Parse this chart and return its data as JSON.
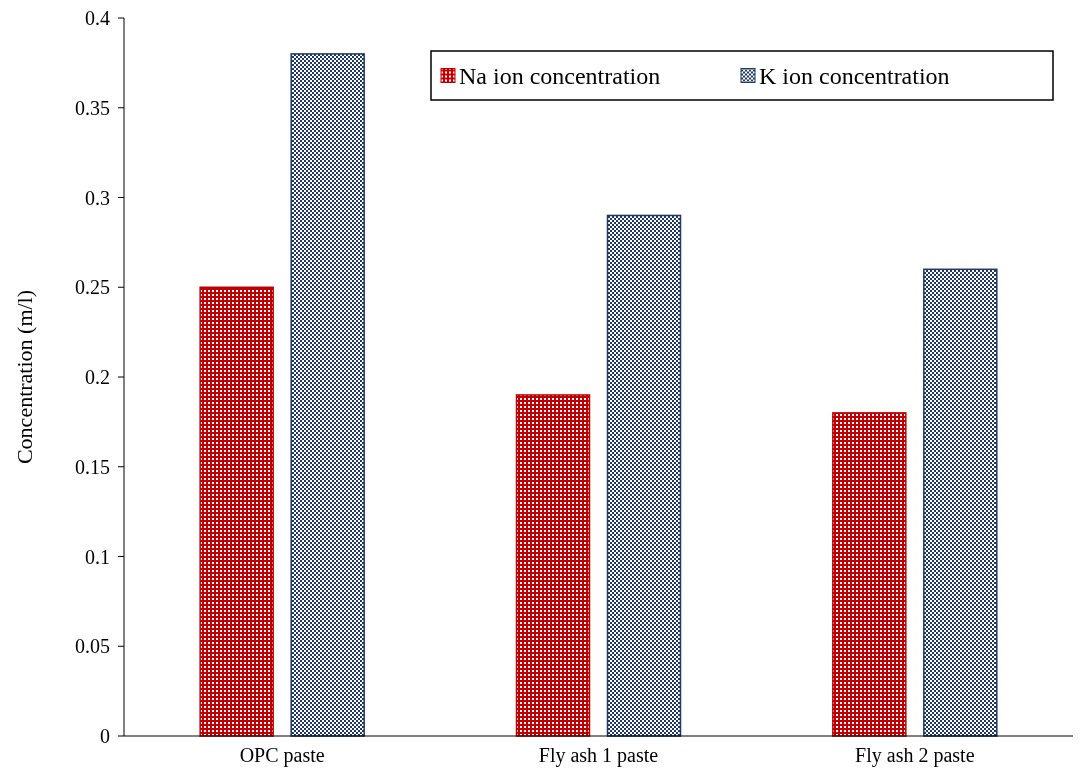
{
  "chart_data": {
    "type": "bar",
    "ylabel": "Concentration (m/l)",
    "categories": [
      "OPC paste",
      "Fly ash 1 paste",
      "Fly ash 2 paste"
    ],
    "series": [
      {
        "name": "Na ion concentration",
        "color": "#c00000",
        "values": [
          0.25,
          0.19,
          0.18
        ]
      },
      {
        "name": "K ion concentration",
        "color": "#1f3864",
        "values": [
          0.38,
          0.29,
          0.26
        ]
      }
    ],
    "ylim": [
      0,
      0.4
    ],
    "yticks": [
      0,
      0.05,
      0.1,
      0.15,
      0.2,
      0.25,
      0.3,
      0.35,
      0.4
    ],
    "legend": "top right"
  }
}
